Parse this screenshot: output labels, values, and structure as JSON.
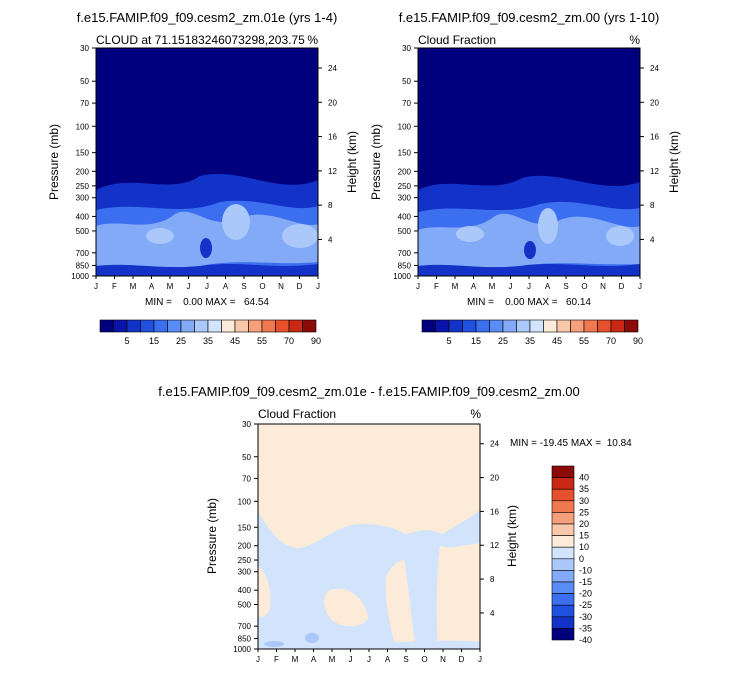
{
  "chart_data": [
    {
      "type": "contour",
      "title": "f.e15.FAMIP.f09_f09.cesm2_zm.01e (yrs 1-4)",
      "subtitle_left": "CLOUD at 71.15183246073298,203.75",
      "units": "%",
      "ylabel": "Pressure (mb)",
      "ylabel_right": "Height (km)",
      "x_ticks": [
        "J",
        "F",
        "M",
        "A",
        "M",
        "J",
        "J",
        "A",
        "S",
        "O",
        "N",
        "D",
        "J"
      ],
      "pressure_ticks": [
        "30",
        "50",
        "70",
        "100",
        "150",
        "200",
        "250",
        "300",
        "400",
        "500",
        "700",
        "850",
        "1000"
      ],
      "height_ticks": [
        "24",
        "20",
        "16",
        "12",
        "8",
        "4"
      ],
      "stats": "MIN =    0.00 MAX =   64.54",
      "min": 0.0,
      "max": 64.54,
      "colorbar_labels": [
        "5",
        "15",
        "25",
        "35",
        "45",
        "55",
        "70",
        "90"
      ]
    },
    {
      "type": "contour",
      "title": "f.e15.FAMIP.f09_f09.cesm2_zm.00 (yrs 1-10)",
      "subtitle_left": "Cloud Fraction",
      "units": "%",
      "ylabel": "Pressure (mb)",
      "ylabel_right": "Height (km)",
      "x_ticks": [
        "J",
        "F",
        "M",
        "A",
        "M",
        "J",
        "J",
        "A",
        "S",
        "O",
        "N",
        "D",
        "J"
      ],
      "pressure_ticks": [
        "30",
        "50",
        "70",
        "100",
        "150",
        "200",
        "250",
        "300",
        "400",
        "500",
        "700",
        "850",
        "1000"
      ],
      "height_ticks": [
        "24",
        "20",
        "16",
        "12",
        "8",
        "4"
      ],
      "stats": "MIN =    0.00 MAX =   60.14",
      "min": 0.0,
      "max": 60.14,
      "colorbar_labels": [
        "5",
        "15",
        "25",
        "35",
        "45",
        "55",
        "70",
        "90"
      ]
    },
    {
      "type": "contour",
      "title": "f.e15.FAMIP.f09_f09.cesm2_zm.01e - f.e15.FAMIP.f09_f09.cesm2_zm.00",
      "subtitle_left": "Cloud Fraction",
      "units": "%",
      "ylabel": "Pressure (mb)",
      "ylabel_right": "Height (km)",
      "x_ticks": [
        "J",
        "F",
        "M",
        "A",
        "M",
        "J",
        "J",
        "A",
        "S",
        "O",
        "N",
        "D",
        "J"
      ],
      "pressure_ticks": [
        "30",
        "50",
        "70",
        "100",
        "150",
        "200",
        "250",
        "300",
        "400",
        "500",
        "700",
        "850",
        "1000"
      ],
      "height_ticks": [
        "24",
        "20",
        "16",
        "12",
        "8",
        "4"
      ],
      "stats": "MIN = -19.45 MAX =  10.84",
      "min": -19.45,
      "max": 10.84,
      "colorbar_labels": [
        "40",
        "35",
        "30",
        "25",
        "20",
        "15",
        "10",
        "0",
        "-10",
        "-15",
        "-20",
        "-25",
        "-30",
        "-35",
        "-40"
      ]
    }
  ],
  "palettes": {
    "full_field": [
      "#00007f",
      "#0a14a8",
      "#1232c8",
      "#2050e0",
      "#3c6ef0",
      "#5a8cf5",
      "#82aaf7",
      "#aac8fa",
      "#d2e4fc",
      "#fcebd8",
      "#f8c8aa",
      "#f5a07a",
      "#f07850",
      "#e6502c",
      "#c82814",
      "#8c0a0a"
    ],
    "difference": [
      "#8c0a0a",
      "#c82814",
      "#e6502c",
      "#f07850",
      "#f5a07a",
      "#f8c8aa",
      "#fcebd8",
      "#d2e4fc",
      "#aac8fa",
      "#82aaf7",
      "#5a8cf5",
      "#3c6ef0",
      "#2050e0",
      "#1232c8",
      "#00007f"
    ]
  },
  "field_colors": {
    "deep": "#00007f",
    "dark": "#1232c8",
    "mid": "#3c6ef0",
    "light": "#82aaf7",
    "pale": "#aac8fa",
    "diff_pos": "#fcebd8",
    "diff_neg": "#d2e4fc",
    "diff_mid": "#aac8fa"
  }
}
